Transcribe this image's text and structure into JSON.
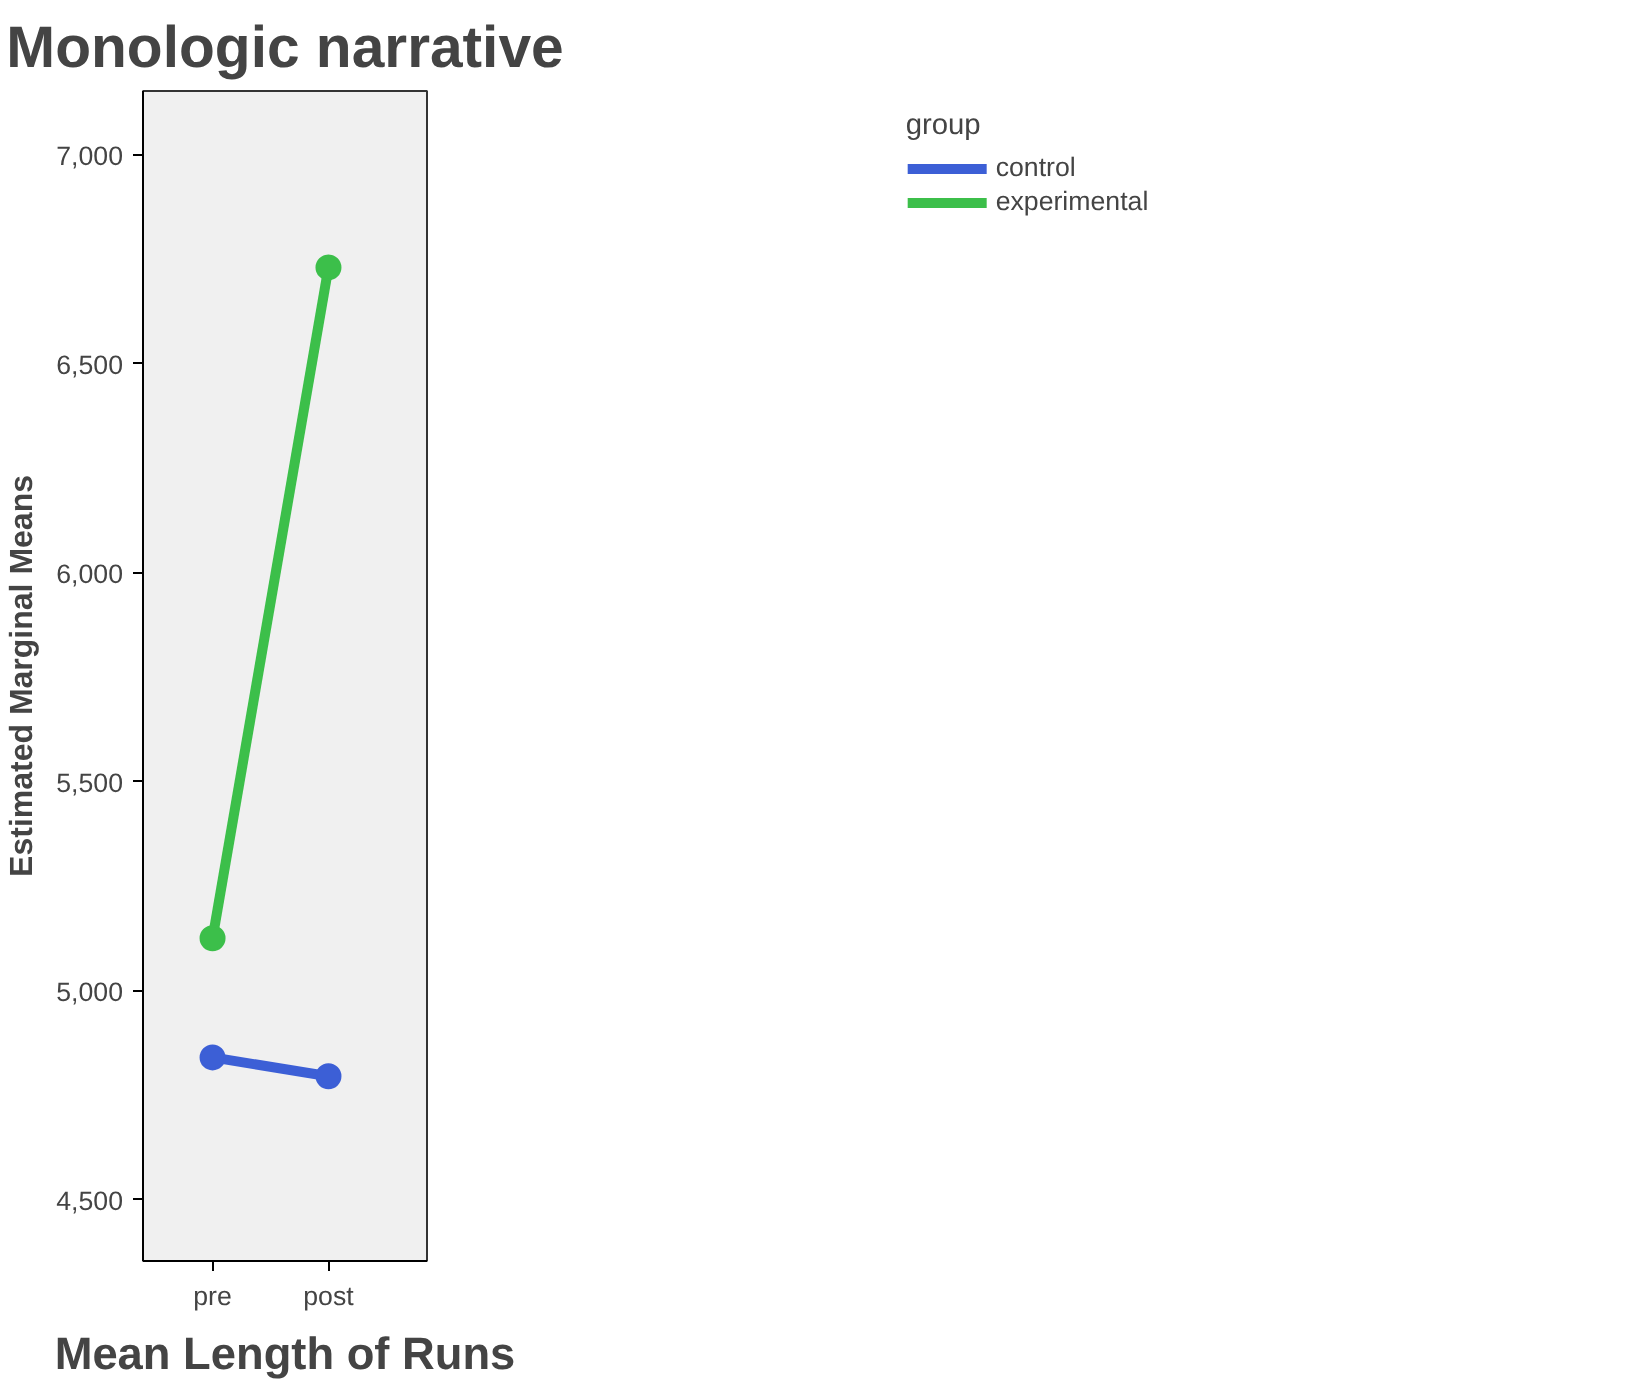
{
  "chart_data": {
    "type": "line",
    "title": "Monologic narrative",
    "xlabel": "Mean Length of Runs",
    "ylabel": "Estimated Marginal Means",
    "legend_title": "group",
    "categories": [
      "pre",
      "post"
    ],
    "series": [
      {
        "name": "control",
        "color": "#3c5fd6",
        "values": [
          4840,
          4795
        ]
      },
      {
        "name": "experimental",
        "color": "#3cbf4a",
        "values": [
          5125,
          6730
        ]
      }
    ],
    "ylim": [
      4353,
      7152
    ],
    "yticks": [
      {
        "value": 4500,
        "label": "4,500"
      },
      {
        "value": 5000,
        "label": "5,000"
      },
      {
        "value": 5500,
        "label": "5,500"
      },
      {
        "value": 6000,
        "label": "6,000"
      },
      {
        "value": 6500,
        "label": "6,500"
      },
      {
        "value": 7000,
        "label": "7,000"
      }
    ],
    "grid": false,
    "legend": "right",
    "marker": "circle",
    "line_style": "solid"
  }
}
